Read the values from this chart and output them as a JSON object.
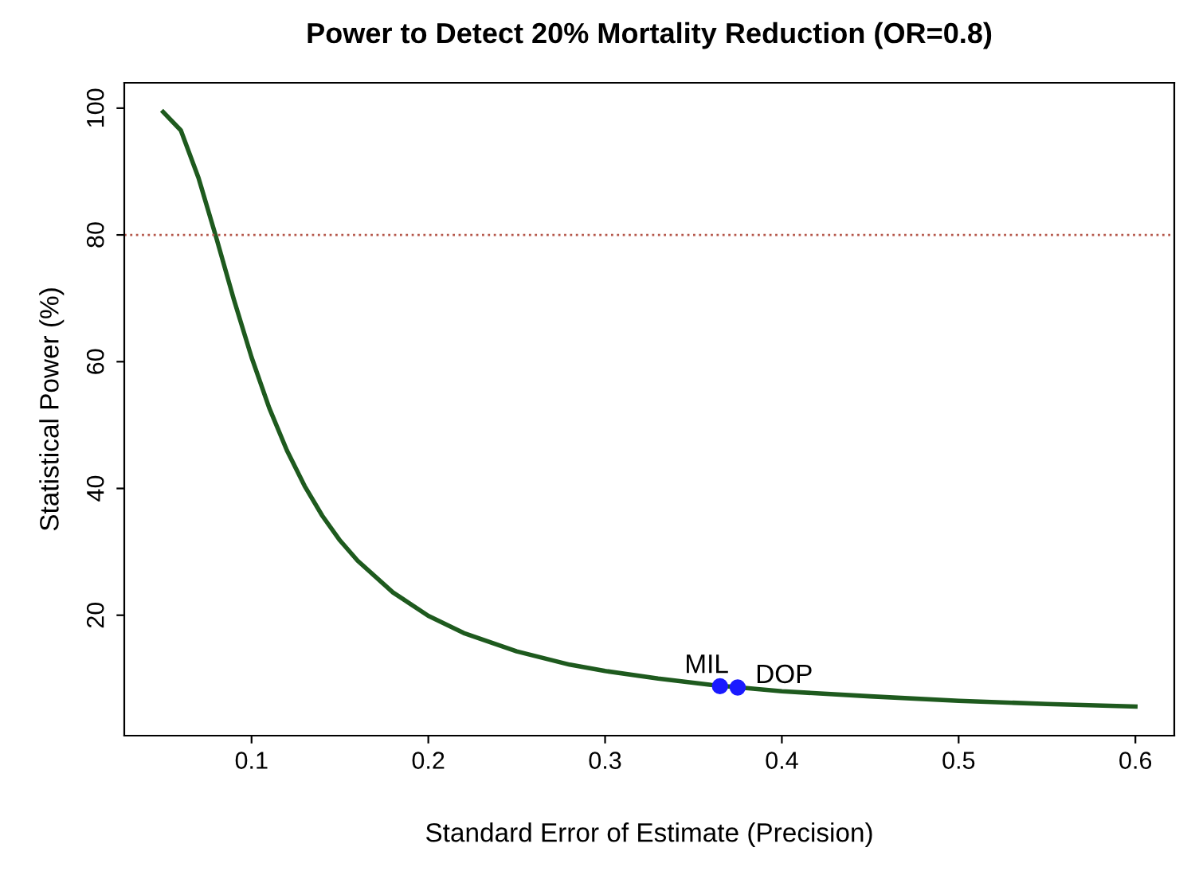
{
  "chart_data": {
    "type": "line",
    "title": "Power to Detect 20% Mortality Reduction (OR=0.8)",
    "xlabel": "Standard Error of Estimate (Precision)",
    "ylabel": "Statistical Power (%)",
    "xlim": [
      0.028,
      0.622
    ],
    "ylim": [
      1,
      104
    ],
    "xticks": [
      0.1,
      0.2,
      0.3,
      0.4,
      0.5,
      0.6
    ],
    "yticks": [
      20,
      40,
      60,
      80,
      100
    ],
    "grid": false,
    "legend": false,
    "series": [
      {
        "color": "#1e5a1e",
        "x": [
          0.05,
          0.06,
          0.07,
          0.08,
          0.09,
          0.1,
          0.11,
          0.12,
          0.13,
          0.14,
          0.15,
          0.16,
          0.18,
          0.2,
          0.22,
          0.25,
          0.28,
          0.3,
          0.33,
          0.36,
          0.4,
          0.45,
          0.5,
          0.55,
          0.6
        ],
        "values": [
          99.4,
          96.5,
          89,
          79.6,
          69.8,
          60.7,
          52.7,
          46,
          40.4,
          35.7,
          31.8,
          28.6,
          23.6,
          19.9,
          17.2,
          14.3,
          12.2,
          11.2,
          10,
          9,
          8,
          7.2,
          6.5,
          6,
          5.6
        ]
      },
      {
        "type": "scatter",
        "color": "#1a1aff",
        "marker": "circle",
        "x": [
          0.365,
          0.375
        ],
        "values": [
          8.8,
          8.6
        ]
      }
    ],
    "ref_lines": [
      {
        "axis": "y",
        "value": 80,
        "color": "#b5574a",
        "line_style": "dotted"
      }
    ],
    "annotations": [
      {
        "text": "MIL",
        "x": 0.365,
        "y": 8.8
      },
      {
        "text": "DOP",
        "x": 0.375,
        "y": 8.6
      }
    ]
  }
}
